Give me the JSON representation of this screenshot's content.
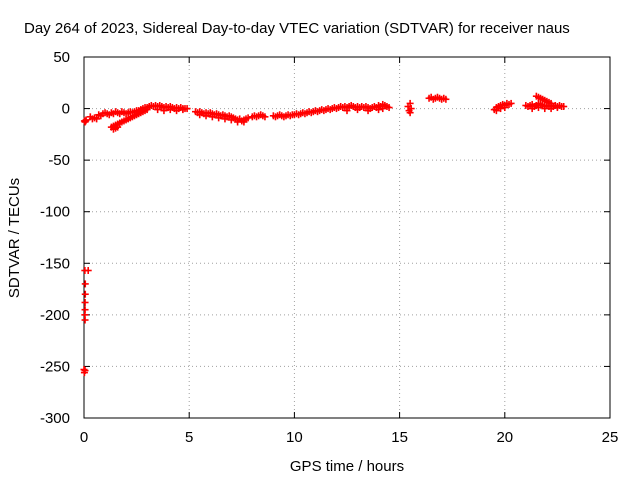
{
  "chart_data": {
    "type": "scatter",
    "title": "Day 264 of 2023, Sidereal Day-to-day VTEC variation (SDTVAR) for receiver naus",
    "xlabel": "GPS time / hours",
    "ylabel": "SDTVAR / TECUs",
    "xlim": [
      0,
      25
    ],
    "ylim": [
      -300,
      50
    ],
    "grid": true,
    "marker": "plus",
    "color": "#ff0000",
    "xticks": [
      0,
      5,
      10,
      15,
      20,
      25
    ],
    "yticks": [
      50,
      0,
      -50,
      -100,
      -150,
      -200,
      -250,
      -300
    ],
    "series": [
      {
        "name": "SDTVAR",
        "points": [
          [
            0.02,
            -12
          ],
          [
            0.05,
            -13
          ],
          [
            0.08,
            -12
          ],
          [
            0.1,
            -11
          ],
          [
            0.04,
            -157
          ],
          [
            0.06,
            -170
          ],
          [
            0.06,
            -180
          ],
          [
            0.05,
            -188
          ],
          [
            0.05,
            -195
          ],
          [
            0.04,
            -200
          ],
          [
            0.05,
            -205
          ],
          [
            0.2,
            -157
          ],
          [
            0.0,
            -253
          ],
          [
            0.02,
            -256
          ],
          [
            0.05,
            -254
          ],
          [
            0.3,
            -8
          ],
          [
            0.4,
            -10
          ],
          [
            0.5,
            -9
          ],
          [
            0.6,
            -10
          ],
          [
            0.7,
            -6
          ],
          [
            0.8,
            -7
          ],
          [
            0.9,
            -5
          ],
          [
            1.0,
            -4
          ],
          [
            1.1,
            -5
          ],
          [
            1.2,
            -6
          ],
          [
            1.3,
            -4
          ],
          [
            1.4,
            -5
          ],
          [
            1.5,
            -3
          ],
          [
            1.6,
            -4
          ],
          [
            1.7,
            -5
          ],
          [
            1.8,
            -3
          ],
          [
            1.9,
            -4
          ],
          [
            2.0,
            -5
          ],
          [
            2.1,
            -4
          ],
          [
            2.2,
            -3
          ],
          [
            2.3,
            -4
          ],
          [
            2.4,
            -3
          ],
          [
            2.5,
            -2
          ],
          [
            2.6,
            -2
          ],
          [
            2.7,
            -1
          ],
          [
            2.8,
            0
          ],
          [
            2.9,
            1
          ],
          [
            3.0,
            1
          ],
          [
            3.1,
            2
          ],
          [
            3.2,
            3
          ],
          [
            1.3,
            -18
          ],
          [
            1.4,
            -17
          ],
          [
            1.5,
            -16
          ],
          [
            1.6,
            -15
          ],
          [
            1.7,
            -14
          ],
          [
            1.8,
            -13
          ],
          [
            1.9,
            -12
          ],
          [
            2.0,
            -11
          ],
          [
            2.1,
            -10
          ],
          [
            2.2,
            -9
          ],
          [
            2.3,
            -8
          ],
          [
            2.4,
            -7
          ],
          [
            2.5,
            -6
          ],
          [
            2.6,
            -5
          ],
          [
            2.7,
            -4
          ],
          [
            2.8,
            -3
          ],
          [
            2.9,
            -2
          ],
          [
            3.0,
            -1
          ],
          [
            1.4,
            -20
          ],
          [
            1.5,
            -19
          ],
          [
            1.6,
            -18
          ],
          [
            3.3,
            2
          ],
          [
            3.4,
            3
          ],
          [
            3.5,
            2
          ],
          [
            3.6,
            3
          ],
          [
            3.7,
            2
          ],
          [
            3.8,
            1
          ],
          [
            3.9,
            2
          ],
          [
            4.0,
            1
          ],
          [
            4.1,
            2
          ],
          [
            4.2,
            1
          ],
          [
            4.3,
            0
          ],
          [
            4.4,
            1
          ],
          [
            4.5,
            0
          ],
          [
            4.6,
            1
          ],
          [
            4.7,
            0
          ],
          [
            4.8,
            0
          ],
          [
            4.9,
            0
          ],
          [
            3.5,
            -1
          ],
          [
            3.8,
            -2
          ],
          [
            4.1,
            -1
          ],
          [
            4.4,
            -2
          ],
          [
            4.7,
            -1
          ],
          [
            5.3,
            -3
          ],
          [
            5.4,
            -4
          ],
          [
            5.5,
            -3
          ],
          [
            5.6,
            -4
          ],
          [
            5.7,
            -5
          ],
          [
            5.8,
            -4
          ],
          [
            5.9,
            -5
          ],
          [
            6.0,
            -4
          ],
          [
            6.1,
            -5
          ],
          [
            6.2,
            -6
          ],
          [
            6.3,
            -5
          ],
          [
            6.4,
            -6
          ],
          [
            6.5,
            -7
          ],
          [
            6.6,
            -6
          ],
          [
            6.7,
            -7
          ],
          [
            6.8,
            -8
          ],
          [
            6.9,
            -7
          ],
          [
            7.0,
            -8
          ],
          [
            7.1,
            -9
          ],
          [
            7.2,
            -10
          ],
          [
            7.3,
            -11
          ],
          [
            7.4,
            -10
          ],
          [
            7.5,
            -12
          ],
          [
            7.6,
            -11
          ],
          [
            7.7,
            -10
          ],
          [
            7.8,
            -9
          ],
          [
            5.5,
            -6
          ],
          [
            5.8,
            -7
          ],
          [
            6.1,
            -8
          ],
          [
            6.4,
            -9
          ],
          [
            6.7,
            -10
          ],
          [
            7.0,
            -11
          ],
          [
            7.3,
            -13
          ],
          [
            7.6,
            -13
          ],
          [
            8.0,
            -8
          ],
          [
            8.1,
            -7
          ],
          [
            8.2,
            -8
          ],
          [
            8.3,
            -7
          ],
          [
            8.4,
            -6
          ],
          [
            8.5,
            -7
          ],
          [
            8.6,
            -8
          ],
          [
            9.0,
            -7
          ],
          [
            9.1,
            -8
          ],
          [
            9.2,
            -7
          ],
          [
            9.3,
            -6
          ],
          [
            9.4,
            -7
          ],
          [
            9.5,
            -8
          ],
          [
            9.6,
            -7
          ],
          [
            9.7,
            -6
          ],
          [
            9.8,
            -7
          ],
          [
            9.9,
            -6
          ],
          [
            10.0,
            -6
          ],
          [
            10.1,
            -5
          ],
          [
            10.2,
            -6
          ],
          [
            10.3,
            -5
          ],
          [
            10.4,
            -4
          ],
          [
            10.5,
            -5
          ],
          [
            10.6,
            -4
          ],
          [
            10.7,
            -3
          ],
          [
            10.8,
            -4
          ],
          [
            10.9,
            -3
          ],
          [
            11.0,
            -2
          ],
          [
            11.1,
            -3
          ],
          [
            11.2,
            -2
          ],
          [
            11.3,
            -1
          ],
          [
            11.4,
            -2
          ],
          [
            11.5,
            -1
          ],
          [
            11.6,
            0
          ],
          [
            11.7,
            -1
          ],
          [
            11.8,
            0
          ],
          [
            11.9,
            1
          ],
          [
            12.0,
            0
          ],
          [
            12.1,
            1
          ],
          [
            12.2,
            2
          ],
          [
            12.3,
            1
          ],
          [
            12.4,
            2
          ],
          [
            12.5,
            1
          ],
          [
            12.6,
            2
          ],
          [
            12.7,
            3
          ],
          [
            12.8,
            2
          ],
          [
            12.9,
            1
          ],
          [
            13.0,
            2
          ],
          [
            13.1,
            1
          ],
          [
            13.2,
            2
          ],
          [
            13.3,
            1
          ],
          [
            13.4,
            2
          ],
          [
            13.5,
            1
          ],
          [
            13.6,
            0
          ],
          [
            13.7,
            1
          ],
          [
            13.8,
            2
          ],
          [
            13.9,
            1
          ],
          [
            14.0,
            3
          ],
          [
            14.1,
            2
          ],
          [
            14.2,
            4
          ],
          [
            14.3,
            3
          ],
          [
            14.4,
            2
          ],
          [
            14.5,
            1
          ],
          [
            12.5,
            -2
          ],
          [
            13.0,
            -1
          ],
          [
            13.5,
            -2
          ],
          [
            14.0,
            -1
          ],
          [
            14.2,
            0
          ],
          [
            15.4,
            2
          ],
          [
            15.45,
            -2
          ],
          [
            15.5,
            5
          ],
          [
            15.55,
            0
          ],
          [
            15.5,
            -4
          ],
          [
            16.4,
            10
          ],
          [
            16.5,
            11
          ],
          [
            16.6,
            9
          ],
          [
            16.7,
            10
          ],
          [
            16.8,
            11
          ],
          [
            16.9,
            10
          ],
          [
            17.0,
            9
          ],
          [
            17.1,
            10
          ],
          [
            17.2,
            9
          ],
          [
            19.5,
            -1
          ],
          [
            19.6,
            1
          ],
          [
            19.7,
            2
          ],
          [
            19.8,
            3
          ],
          [
            19.9,
            4
          ],
          [
            20.0,
            3
          ],
          [
            20.1,
            5
          ],
          [
            20.2,
            4
          ],
          [
            20.3,
            5
          ],
          [
            19.6,
            -2
          ],
          [
            19.8,
            0
          ],
          [
            20.0,
            1
          ],
          [
            21.0,
            3
          ],
          [
            21.1,
            2
          ],
          [
            21.2,
            3
          ],
          [
            21.3,
            4
          ],
          [
            21.4,
            2
          ],
          [
            21.5,
            3
          ],
          [
            21.6,
            5
          ],
          [
            21.7,
            4
          ],
          [
            21.8,
            3
          ],
          [
            21.9,
            2
          ],
          [
            22.0,
            3
          ],
          [
            22.1,
            2
          ],
          [
            22.2,
            3
          ],
          [
            22.3,
            2
          ],
          [
            22.4,
            3
          ],
          [
            22.5,
            2
          ],
          [
            22.6,
            3
          ],
          [
            22.7,
            2
          ],
          [
            22.8,
            2
          ],
          [
            21.3,
            0
          ],
          [
            21.6,
            1
          ],
          [
            21.9,
            0
          ],
          [
            22.2,
            0
          ],
          [
            22.5,
            1
          ],
          [
            21.5,
            12
          ],
          [
            21.6,
            11
          ],
          [
            21.7,
            10
          ],
          [
            21.8,
            9
          ],
          [
            21.9,
            8
          ],
          [
            22.0,
            7
          ],
          [
            22.1,
            6
          ],
          [
            22.2,
            5
          ]
        ]
      }
    ]
  }
}
